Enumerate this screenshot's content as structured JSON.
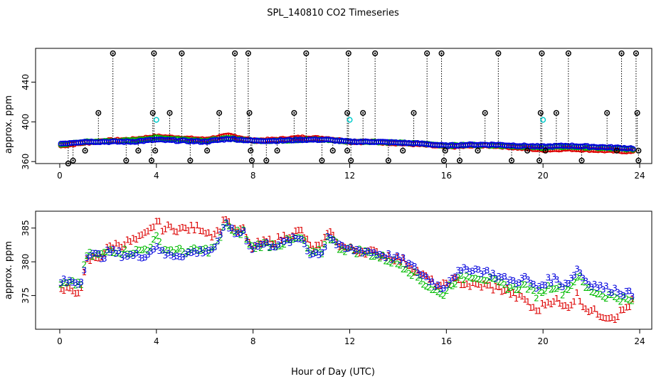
{
  "title": "SPL_140810  CO2 Timeseries",
  "xlabel": "Hour of Day (UTC)",
  "colors": {
    "flag_marker": "#000000",
    "flag_line": "#000000",
    "cal_marker": "#00cccc",
    "series1": "#dd0000",
    "series2": "#00bb00",
    "series3": "#0000dd"
  },
  "chart_data": [
    {
      "type": "scatter",
      "name": "top-panel",
      "ylabel": "approx. ppm",
      "xlim": [
        -1,
        24.5
      ],
      "ylim": [
        358,
        474
      ],
      "x_ticks": [
        0,
        4,
        8,
        12,
        16,
        20,
        24
      ],
      "y_ticks": [
        360,
        400,
        440
      ],
      "anchors": [
        [
          0,
          378
        ],
        [
          1,
          380
        ],
        [
          2,
          380
        ],
        [
          3,
          380
        ],
        [
          4,
          382
        ],
        [
          5,
          381
        ],
        [
          6,
          380
        ],
        [
          7,
          383
        ],
        [
          8,
          381
        ],
        [
          9,
          381
        ],
        [
          10,
          382
        ],
        [
          11,
          382
        ],
        [
          12,
          380
        ],
        [
          13,
          380
        ],
        [
          14,
          379
        ],
        [
          15,
          378
        ],
        [
          16,
          376
        ],
        [
          17,
          377
        ],
        [
          18,
          377
        ],
        [
          19,
          376
        ],
        [
          20,
          375
        ],
        [
          21,
          376
        ],
        [
          22,
          375
        ],
        [
          23,
          374
        ],
        [
          24,
          373
        ]
      ],
      "series": [
        {
          "name": "1",
          "offsets": [
            [
              0,
              -2
            ],
            [
              1,
              -1
            ],
            [
              2,
              1
            ],
            [
              4,
              3
            ],
            [
              6,
              2
            ],
            [
              7,
              3
            ],
            [
              8,
              0
            ],
            [
              10,
              2
            ],
            [
              12,
              0
            ],
            [
              16,
              -1
            ],
            [
              18,
              -1
            ],
            [
              20,
              -3
            ],
            [
              23,
              -3
            ],
            [
              24,
              -3
            ]
          ]
        },
        {
          "name": "2",
          "offsets": [
            [
              0,
              -1
            ],
            [
              4,
              2
            ],
            [
              8,
              0
            ],
            [
              12,
              0
            ],
            [
              16,
              0
            ],
            [
              20,
              -1
            ],
            [
              24,
              -1
            ]
          ]
        },
        {
          "name": "3",
          "offsets": [
            [
              0,
              0
            ],
            [
              24,
              0
            ]
          ]
        }
      ],
      "flag_high": [
        [
          0.35,
          358
        ],
        [
          2.2,
          469
        ],
        [
          3.9,
          469
        ],
        [
          5.05,
          469
        ],
        [
          7.25,
          469
        ],
        [
          7.8,
          469
        ],
        [
          10.2,
          469
        ],
        [
          11.95,
          469
        ],
        [
          13.05,
          469
        ],
        [
          15.2,
          469
        ],
        [
          15.8,
          469
        ],
        [
          18.15,
          469
        ],
        [
          19.95,
          469
        ],
        [
          21.05,
          469
        ],
        [
          23.25,
          469
        ],
        [
          23.85,
          469
        ],
        [
          1.6,
          409
        ],
        [
          3.85,
          409
        ],
        [
          4.55,
          409
        ],
        [
          6.6,
          409
        ],
        [
          7.85,
          409
        ],
        [
          9.7,
          409
        ],
        [
          11.9,
          409
        ],
        [
          12.55,
          409
        ],
        [
          14.65,
          409
        ],
        [
          17.6,
          409
        ],
        [
          19.9,
          409
        ],
        [
          20.55,
          409
        ],
        [
          22.65,
          409
        ],
        [
          23.9,
          409
        ]
      ],
      "flag_low": [
        [
          0.55,
          361
        ],
        [
          2.75,
          361
        ],
        [
          3.8,
          361
        ],
        [
          5.4,
          361
        ],
        [
          7.95,
          361
        ],
        [
          8.55,
          361
        ],
        [
          10.85,
          361
        ],
        [
          12.05,
          361
        ],
        [
          13.6,
          361
        ],
        [
          15.9,
          361
        ],
        [
          16.55,
          361
        ],
        [
          18.7,
          361
        ],
        [
          19.85,
          361
        ],
        [
          21.6,
          361
        ],
        [
          23.95,
          361
        ],
        [
          1.05,
          371
        ],
        [
          3.25,
          371
        ],
        [
          3.95,
          371
        ],
        [
          6.1,
          371
        ],
        [
          7.9,
          371
        ],
        [
          9.0,
          371
        ],
        [
          11.3,
          371
        ],
        [
          11.9,
          371
        ],
        [
          14.2,
          371
        ],
        [
          15.95,
          371
        ],
        [
          17.3,
          371
        ],
        [
          19.35,
          371
        ],
        [
          20.1,
          371
        ],
        [
          23.05,
          371
        ],
        [
          23.95,
          371
        ]
      ],
      "cal_points": [
        [
          4.0,
          402
        ],
        [
          12.0,
          402
        ],
        [
          20.0,
          402
        ]
      ]
    },
    {
      "type": "scatter",
      "name": "bottom-panel",
      "ylabel": "approx. ppm",
      "xlim": [
        -1,
        24.5
      ],
      "ylim": [
        370,
        387.5
      ],
      "x_ticks": [
        0,
        4,
        8,
        12,
        16,
        20,
        24
      ],
      "y_ticks": [
        375,
        380,
        385
      ],
      "anchors": [
        [
          0,
          377
        ],
        [
          0.9,
          377
        ],
        [
          1.1,
          381
        ],
        [
          1.8,
          380.8
        ],
        [
          2.1,
          381.5
        ],
        [
          2.6,
          381
        ],
        [
          3.3,
          380.8
        ],
        [
          3.7,
          381.2
        ],
        [
          4.0,
          382.5
        ],
        [
          4.3,
          381
        ],
        [
          5.0,
          381
        ],
        [
          5.8,
          381.5
        ],
        [
          6.3,
          381.8
        ],
        [
          6.6,
          383
        ],
        [
          6.9,
          386
        ],
        [
          7.2,
          384
        ],
        [
          7.6,
          384.5
        ],
        [
          7.9,
          382
        ],
        [
          8.3,
          382.5
        ],
        [
          9.0,
          382.5
        ],
        [
          9.5,
          383
        ],
        [
          10.0,
          383.5
        ],
        [
          10.4,
          381
        ],
        [
          10.9,
          381.5
        ],
        [
          11.1,
          384
        ],
        [
          11.6,
          382
        ],
        [
          12.0,
          381.8
        ],
        [
          12.8,
          381.5
        ],
        [
          13.6,
          380.8
        ],
        [
          14.3,
          380
        ],
        [
          15.0,
          378
        ],
        [
          15.8,
          376
        ],
        [
          16.3,
          378
        ],
        [
          17.0,
          379
        ],
        [
          17.6,
          378.5
        ],
        [
          18.3,
          377.5
        ],
        [
          18.8,
          377
        ],
        [
          19.3,
          377.5
        ],
        [
          19.7,
          376
        ],
        [
          20.1,
          377
        ],
        [
          20.5,
          377.5
        ],
        [
          20.8,
          376.5
        ],
        [
          21.2,
          377.5
        ],
        [
          21.4,
          379
        ],
        [
          21.8,
          377
        ],
        [
          22.5,
          376
        ],
        [
          23.0,
          375.8
        ],
        [
          23.7,
          375
        ]
      ],
      "series": [
        {
          "name": "1",
          "offsets": [
            [
              0,
              -1.3
            ],
            [
              0.9,
              -1.3
            ],
            [
              1.1,
              -1
            ],
            [
              2.5,
              1.5
            ],
            [
              4.0,
              3.5
            ],
            [
              4.5,
              4
            ],
            [
              5.8,
              3.5
            ],
            [
              7.0,
              0.5
            ],
            [
              8.0,
              0
            ],
            [
              9.5,
              1
            ],
            [
              10.5,
              1
            ],
            [
              11.5,
              0.5
            ],
            [
              12.0,
              0
            ],
            [
              16.0,
              0
            ],
            [
              17.0,
              -2.5
            ],
            [
              18.5,
              -1.5
            ],
            [
              19.5,
              -3.5
            ],
            [
              20.5,
              -3
            ],
            [
              21.5,
              -4
            ],
            [
              23.0,
              -4
            ],
            [
              23.7,
              -1
            ]
          ]
        },
        {
          "name": "2",
          "offsets": [
            [
              0,
              -0.5
            ],
            [
              4,
              1
            ],
            [
              6,
              0
            ],
            [
              12,
              0
            ],
            [
              15,
              -1
            ],
            [
              16,
              -1
            ],
            [
              20,
              -1
            ],
            [
              24,
              -1
            ]
          ]
        },
        {
          "name": "3",
          "offsets": [
            [
              0,
              0
            ],
            [
              24,
              0
            ]
          ]
        }
      ]
    }
  ]
}
